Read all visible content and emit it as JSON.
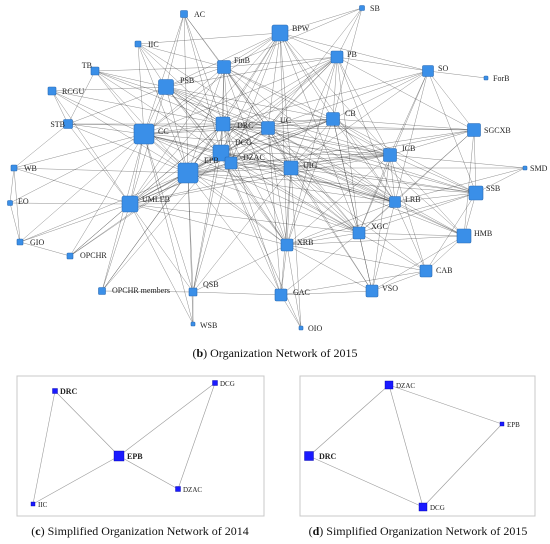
{
  "main_network": {
    "caption_letter": "b",
    "caption_text": "Organization Network of 2015",
    "nodes": [
      {
        "id": "AC",
        "label": "AC"
      },
      {
        "id": "SB",
        "label": "SB"
      },
      {
        "id": "IIC",
        "label": "IIC"
      },
      {
        "id": "BPW",
        "label": "BPW"
      },
      {
        "id": "FinB",
        "label": "FinB"
      },
      {
        "id": "PB",
        "label": "PB"
      },
      {
        "id": "TB",
        "label": "TB"
      },
      {
        "id": "PSB",
        "label": "PSB"
      },
      {
        "id": "SO",
        "label": "SO"
      },
      {
        "id": "ForB",
        "label": "ForB"
      },
      {
        "id": "RCGU",
        "label": "RCGU"
      },
      {
        "id": "STB",
        "label": "STB"
      },
      {
        "id": "CC",
        "label": "CC"
      },
      {
        "id": "DRC",
        "label": "DRC"
      },
      {
        "id": "UC",
        "label": "UC"
      },
      {
        "id": "CB",
        "label": "CB"
      },
      {
        "id": "SGCXB",
        "label": "SGCXB"
      },
      {
        "id": "DCG",
        "label": "DCG"
      },
      {
        "id": "DZAC",
        "label": "DZAC"
      },
      {
        "id": "ICB",
        "label": "ICB"
      },
      {
        "id": "SMD",
        "label": "SMD"
      },
      {
        "id": "WB",
        "label": "WB"
      },
      {
        "id": "EPB",
        "label": "EPB"
      },
      {
        "id": "UIG",
        "label": "UIG"
      },
      {
        "id": "SSB",
        "label": "SSB"
      },
      {
        "id": "EO",
        "label": "EO"
      },
      {
        "id": "UMLEB",
        "label": "UMLEB"
      },
      {
        "id": "LRB",
        "label": "LRB"
      },
      {
        "id": "GIO",
        "label": "GIO"
      },
      {
        "id": "XGC",
        "label": "XGC"
      },
      {
        "id": "HMB",
        "label": "HMB"
      },
      {
        "id": "XRB",
        "label": "XRB"
      },
      {
        "id": "OPCHR",
        "label": "OPCHR"
      },
      {
        "id": "CAB",
        "label": "CAB"
      },
      {
        "id": "QSB",
        "label": "QSB"
      },
      {
        "id": "OPCHRM",
        "label": "OPCHR members"
      },
      {
        "id": "GAC",
        "label": "GAC"
      },
      {
        "id": "VSO",
        "label": "VSO"
      },
      {
        "id": "WSB",
        "label": "WSB"
      },
      {
        "id": "OIO",
        "label": "OIO"
      }
    ]
  },
  "panel_c": {
    "caption_letter": "c",
    "caption_text": "Simplified Organization Network of 2014",
    "nodes": [
      {
        "id": "DRC",
        "label": "DRC"
      },
      {
        "id": "DCG",
        "label": "DCG"
      },
      {
        "id": "EPB",
        "label": "EPB"
      },
      {
        "id": "DZAC",
        "label": "DZAC"
      },
      {
        "id": "IIC",
        "label": "IIC"
      }
    ],
    "edges": [
      [
        "DRC",
        "EPB"
      ],
      [
        "IIC",
        "DRC"
      ],
      [
        "IIC",
        "EPB"
      ],
      [
        "EPB",
        "DCG"
      ],
      [
        "DCG",
        "DZAC"
      ],
      [
        "EPB",
        "DZAC"
      ]
    ]
  },
  "panel_d": {
    "caption_letter": "d",
    "caption_text": "Simplified Organization Network of 2015",
    "nodes": [
      {
        "id": "DZAC",
        "label": "DZAC"
      },
      {
        "id": "EPB",
        "label": "EPB"
      },
      {
        "id": "DRC",
        "label": "DRC"
      },
      {
        "id": "DCG",
        "label": "DCG"
      }
    ],
    "edges": [
      [
        "DZAC",
        "DRC"
      ],
      [
        "DZAC",
        "EPB"
      ],
      [
        "DZAC",
        "DCG"
      ],
      [
        "DRC",
        "DCG"
      ],
      [
        "EPB",
        "DCG"
      ]
    ]
  },
  "colors": {
    "main_node": "#3a8fe8",
    "sub_node": "#1a1aff",
    "edge": "#1a1a1a",
    "sub_edge": "#9a9a9a"
  }
}
